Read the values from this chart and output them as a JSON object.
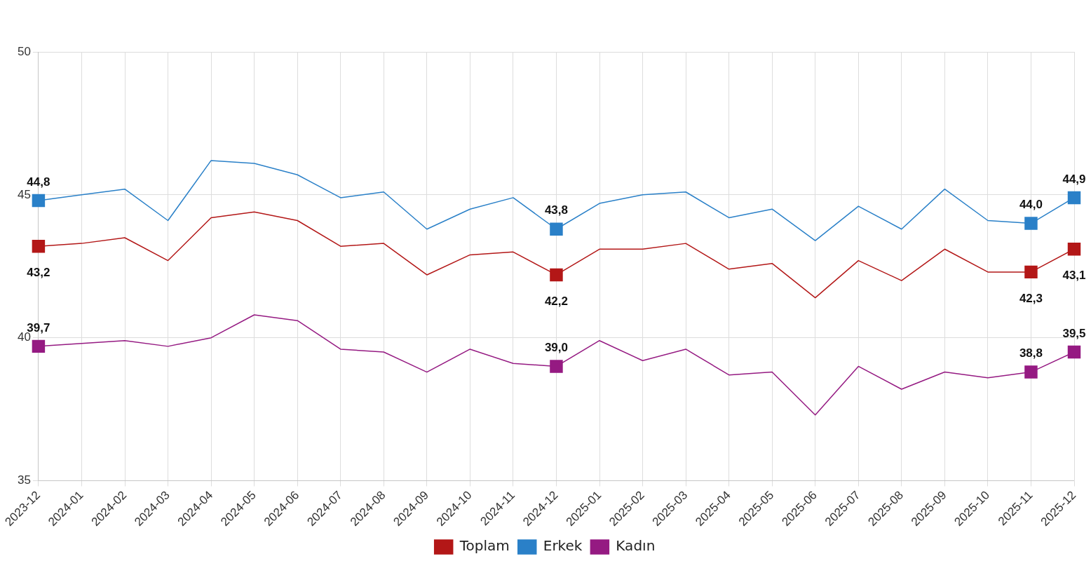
{
  "chart_data": {
    "type": "line",
    "categories": [
      "2023-12",
      "2024-01",
      "2024-02",
      "2024-03",
      "2024-04",
      "2024-05",
      "2024-06",
      "2024-07",
      "2024-08",
      "2024-09",
      "2024-10",
      "2024-11",
      "2024-12",
      "2025-01",
      "2025-02",
      "2025-03",
      "2025-04",
      "2025-05",
      "2025-06",
      "2025-07",
      "2025-08",
      "2025-09",
      "2025-10",
      "2025-11",
      "2025-12"
    ],
    "series": [
      {
        "name": "Toplam",
        "color": "#b31717",
        "values": [
          43.2,
          43.3,
          43.5,
          42.7,
          44.2,
          44.4,
          44.1,
          43.2,
          43.3,
          42.2,
          42.9,
          43.0,
          42.2,
          43.1,
          43.1,
          43.3,
          42.4,
          42.6,
          41.4,
          42.7,
          42.0,
          43.1,
          42.3,
          42.3,
          43.1
        ],
        "value_labels": [
          "43,2",
          null,
          null,
          null,
          null,
          null,
          null,
          null,
          null,
          null,
          null,
          null,
          "42,2",
          null,
          null,
          null,
          null,
          null,
          null,
          null,
          null,
          null,
          null,
          "42,3",
          "43,1"
        ]
      },
      {
        "name": "Erkek",
        "color": "#2a80c8",
        "values": [
          44.8,
          45.0,
          45.2,
          44.1,
          46.2,
          46.1,
          45.7,
          44.9,
          45.1,
          43.8,
          44.5,
          44.9,
          43.8,
          44.7,
          45.0,
          45.1,
          44.2,
          44.5,
          43.4,
          44.6,
          43.8,
          45.2,
          44.1,
          44.0,
          44.9
        ],
        "value_labels": [
          "44,8",
          null,
          null,
          null,
          null,
          null,
          null,
          null,
          null,
          null,
          null,
          null,
          "43,8",
          null,
          null,
          null,
          null,
          null,
          null,
          null,
          null,
          null,
          null,
          "44,0",
          "44,9"
        ]
      },
      {
        "name": "Kadın",
        "color": "#951a82",
        "values": [
          39.7,
          39.8,
          39.9,
          39.7,
          40.0,
          40.8,
          40.6,
          39.6,
          39.5,
          38.8,
          39.6,
          39.1,
          39.0,
          39.9,
          39.2,
          39.6,
          38.7,
          38.8,
          37.3,
          39.0,
          38.2,
          38.8,
          38.6,
          38.8,
          39.5
        ],
        "value_labels": [
          "39,7",
          null,
          null,
          null,
          null,
          null,
          null,
          null,
          null,
          null,
          null,
          null,
          "39,0",
          null,
          null,
          null,
          null,
          null,
          null,
          null,
          null,
          null,
          null,
          "38,8",
          "39,5"
        ]
      }
    ],
    "ylim": [
      35,
      50
    ],
    "yticks": [
      35,
      40,
      45,
      50
    ],
    "grid": true,
    "legend": "bottom"
  }
}
